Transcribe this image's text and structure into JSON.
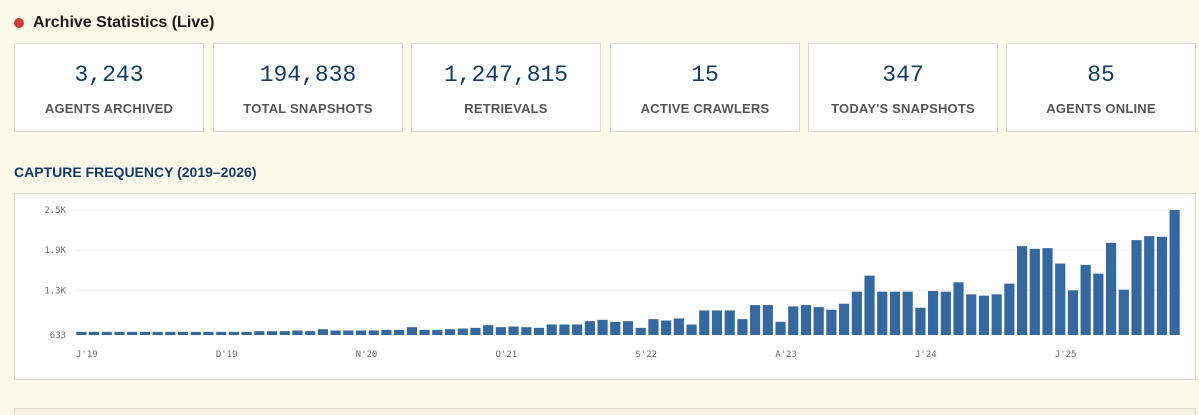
{
  "header": {
    "title": "Archive Statistics (Live)",
    "status_color": "#d33c3c"
  },
  "stats": [
    {
      "value": "3,243",
      "label": "AGENTS ARCHIVED"
    },
    {
      "value": "194,838",
      "label": "TOTAL SNAPSHOTS"
    },
    {
      "value": "1,247,815",
      "label": "RETRIEVALS"
    },
    {
      "value": "15",
      "label": "ACTIVE CRAWLERS"
    },
    {
      "value": "347",
      "label": "TODAY'S SNAPSHOTS"
    },
    {
      "value": "85",
      "label": "AGENTS ONLINE"
    }
  ],
  "chart_section": {
    "title": "CAPTURE FREQUENCY (2019–2026)"
  },
  "chart_data": {
    "type": "bar",
    "bar_color": "#35689f",
    "grid": true,
    "y_ticks": [
      "633",
      "1.3K",
      "1.9K",
      "2.5K"
    ],
    "y_tick_values": [
      633,
      1300,
      1900,
      2500
    ],
    "ylim": [
      633,
      2500
    ],
    "x_tick_labels": [
      {
        "label": "J'19",
        "index": 0
      },
      {
        "label": "D'19",
        "index": 11
      },
      {
        "label": "N'20",
        "index": 22
      },
      {
        "label": "O'21",
        "index": 33
      },
      {
        "label": "S'22",
        "index": 44
      },
      {
        "label": "A'23",
        "index": 55
      },
      {
        "label": "J'24",
        "index": 66
      },
      {
        "label": "J'25",
        "index": 77
      }
    ],
    "values": [
      680,
      680,
      680,
      680,
      680,
      680,
      680,
      680,
      680,
      680,
      680,
      680,
      680,
      680,
      690,
      690,
      690,
      700,
      690,
      720,
      700,
      700,
      700,
      700,
      710,
      710,
      750,
      710,
      710,
      720,
      730,
      740,
      780,
      750,
      760,
      750,
      740,
      790,
      790,
      790,
      840,
      860,
      830,
      840,
      740,
      870,
      850,
      880,
      790,
      1000,
      1000,
      1000,
      870,
      1080,
      1080,
      830,
      1060,
      1080,
      1050,
      1010,
      1100,
      1280,
      1520,
      1280,
      1280,
      1280,
      1040,
      1290,
      1280,
      1420,
      1240,
      1220,
      1240,
      1400,
      1960,
      1920,
      1930,
      1700,
      1300,
      1680,
      1550,
      2010,
      1310,
      2050,
      2110,
      2100,
      2500
    ]
  }
}
